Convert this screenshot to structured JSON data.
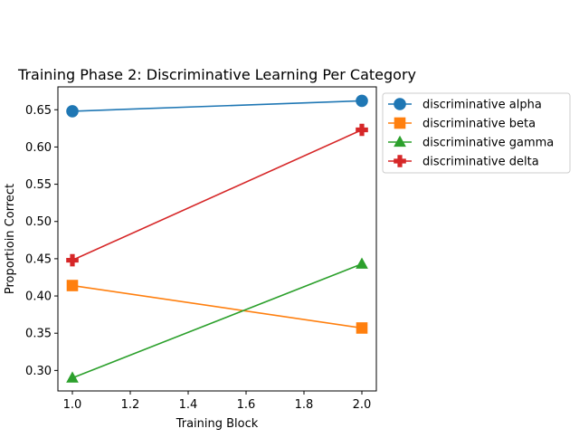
{
  "chart_data": {
    "type": "line",
    "title": "Training Phase 2: Discriminative Learning Per Category",
    "xlabel": "Training Block",
    "ylabel": "Proportioin Correct",
    "xlim": [
      0.95,
      2.05
    ],
    "ylim": [
      0.2725,
      0.6807
    ],
    "x_ticks": [
      1.0,
      1.2,
      1.4,
      1.6,
      1.8,
      2.0
    ],
    "x_tick_labels": [
      "1.0",
      "1.2",
      "1.4",
      "1.6",
      "1.8",
      "2.0"
    ],
    "y_ticks": [
      0.3,
      0.35,
      0.4,
      0.45,
      0.5,
      0.55,
      0.6,
      0.65
    ],
    "y_tick_labels": [
      "0.30",
      "0.35",
      "0.40",
      "0.45",
      "0.50",
      "0.55",
      "0.60",
      "0.65"
    ],
    "grid": false,
    "legend_position": "outside-upper-right",
    "x": [
      1.0,
      2.0
    ],
    "series": [
      {
        "name": "discriminative alpha",
        "values": [
          0.648,
          0.662
        ],
        "color": "#1f77b4",
        "marker": "circle"
      },
      {
        "name": "discriminative beta",
        "values": [
          0.414,
          0.357
        ],
        "color": "#ff7f0e",
        "marker": "square"
      },
      {
        "name": "discriminative gamma",
        "values": [
          0.29,
          0.443
        ],
        "color": "#2ca02c",
        "marker": "triangle"
      },
      {
        "name": "discriminative delta",
        "values": [
          0.448,
          0.623
        ],
        "color": "#d62728",
        "marker": "plus"
      }
    ]
  }
}
